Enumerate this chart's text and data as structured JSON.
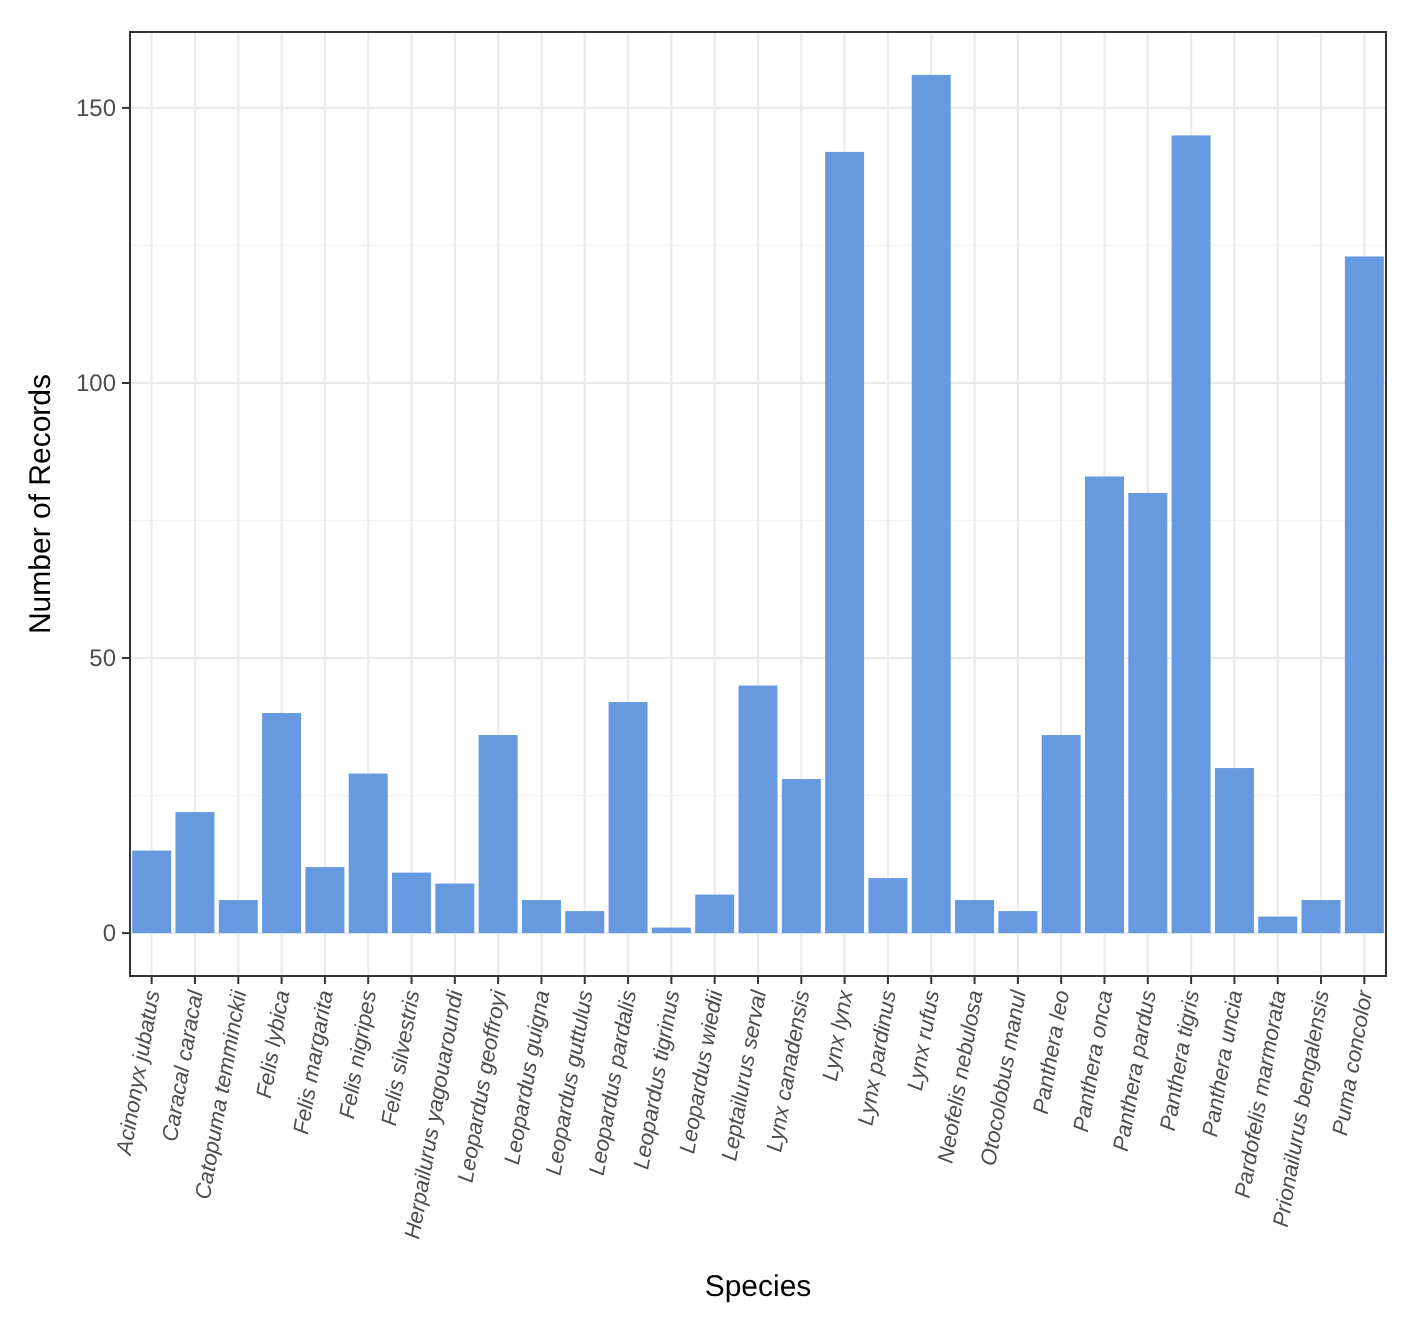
{
  "chart_data": {
    "type": "bar",
    "xlabel": "Species",
    "ylabel": "Number of Records",
    "categories": [
      "Acinonyx jubatus",
      "Caracal caracal",
      "Catopuma temminckii",
      "Felis lybica",
      "Felis margarita",
      "Felis nigripes",
      "Felis silvestris",
      "Herpailurus yagouaroundi",
      "Leopardus geoffroyi",
      "Leopardus guigna",
      "Leopardus guttulus",
      "Leopardus pardalis",
      "Leopardus tigrinus",
      "Leopardus wiedii",
      "Leptailurus serval",
      "Lynx canadensis",
      "Lynx lynx",
      "Lynx pardinus",
      "Lynx rufus",
      "Neofelis nebulosa",
      "Otocolobus manul",
      "Panthera leo",
      "Panthera onca",
      "Panthera pardus",
      "Panthera tigris",
      "Panthera uncia",
      "Pardofelis marmorata",
      "Prionailurus bengalensis",
      "Puma concolor"
    ],
    "values": [
      15,
      22,
      6,
      40,
      12,
      29,
      11,
      9,
      36,
      6,
      4,
      42,
      1,
      7,
      45,
      28,
      142,
      10,
      156,
      6,
      4,
      36,
      83,
      80,
      145,
      30,
      3,
      6,
      123
    ],
    "color": "#6699e0",
    "ylim": [
      -7.8,
      163.8
    ],
    "yticks": [
      0,
      50,
      100,
      150
    ],
    "grid": true
  }
}
